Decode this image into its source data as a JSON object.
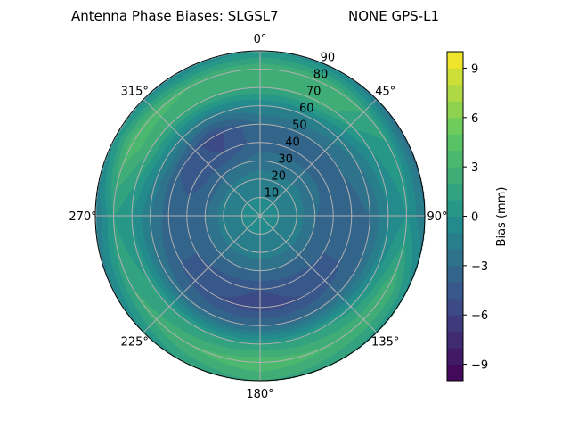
{
  "chart_data": {
    "type": "heatmap",
    "projection": "polar",
    "title_left": "Antenna Phase Biases: SLGSL7",
    "title_right": "NONE GPS-L1",
    "theta_direction": "clockwise",
    "theta_zero": "north",
    "theta_ticks": [
      "0°",
      "45°",
      "90°",
      "135°",
      "180°",
      "225°",
      "270°",
      "315°"
    ],
    "r_ticks": [
      "10",
      "20",
      "30",
      "40",
      "50",
      "60",
      "70",
      "80",
      "90"
    ],
    "rlim": [
      0,
      90
    ],
    "grid": true,
    "colormap": "viridis",
    "colorbar": {
      "label": "Bias (mm)",
      "range": [
        -10,
        10
      ],
      "level_step": 1,
      "ticks": [
        "9",
        "6",
        "3",
        "0",
        "−3",
        "−6",
        "−9"
      ],
      "tick_values": [
        9,
        6,
        3,
        0,
        -3,
        -6,
        -9
      ]
    },
    "azimuth_deg": [
      0,
      30,
      60,
      90,
      120,
      150,
      180,
      210,
      240,
      270,
      300,
      330
    ],
    "zenith_deg": [
      0,
      10,
      20,
      30,
      40,
      50,
      60,
      70,
      80,
      90
    ],
    "bias_mm": [
      [
        -1,
        -1,
        -1,
        -1,
        -1,
        -1,
        -1,
        -1,
        -1,
        -1,
        -1,
        -1
      ],
      [
        -1,
        -1,
        -1,
        -1,
        -1,
        -1,
        -1,
        -1,
        -1,
        -1,
        -1,
        -1
      ],
      [
        -1.5,
        -1.5,
        -1.5,
        -1.5,
        -1.5,
        -1.5,
        -1.5,
        -1.5,
        -1.5,
        -1.5,
        -1.5,
        -1.5
      ],
      [
        -2.5,
        -2.5,
        -2.5,
        -3,
        -3,
        -3,
        -3,
        -3,
        -3,
        -3,
        -3.5,
        -3
      ],
      [
        -3.5,
        -3.5,
        -3.5,
        -3.5,
        -4,
        -4.5,
        -5,
        -4.5,
        -4,
        -3.5,
        -4.5,
        -5
      ],
      [
        -3,
        -3,
        -3,
        -3.5,
        -4,
        -5,
        -5.5,
        -5,
        -4,
        -3.5,
        -4,
        -5.5
      ],
      [
        -1,
        -1,
        -2,
        -3,
        -3,
        -3,
        -3,
        -3,
        -2.5,
        -2,
        -1,
        -2
      ],
      [
        2,
        2.5,
        0,
        -1,
        0,
        1,
        1,
        1,
        1,
        0,
        2,
        2
      ],
      [
        3,
        3,
        1,
        0,
        3,
        3,
        4,
        3,
        2,
        1,
        4,
        3
      ],
      [
        0,
        -1,
        -3,
        -2,
        0,
        1,
        2,
        1,
        -1,
        -2,
        0,
        -1
      ]
    ]
  }
}
